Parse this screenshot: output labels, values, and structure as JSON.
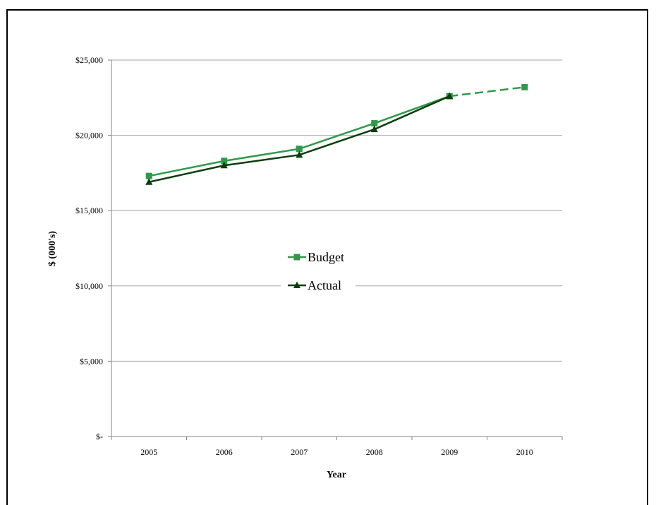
{
  "chart_data": {
    "type": "line",
    "title": "",
    "xlabel": "Year",
    "ylabel": "$ (000's)",
    "categories": [
      "2005",
      "2006",
      "2007",
      "2008",
      "2009",
      "2010"
    ],
    "ylim": [
      0,
      25000
    ],
    "yticks": [
      {
        "value": 0,
        "label": "$-"
      },
      {
        "value": 5000,
        "label": "$5,000"
      },
      {
        "value": 10000,
        "label": "$10,000"
      },
      {
        "value": 15000,
        "label": "$15,000"
      },
      {
        "value": 20000,
        "label": "$20,000"
      },
      {
        "value": 25000,
        "label": "$25,000"
      }
    ],
    "grid": "horizontal",
    "legend_position": "center",
    "series": [
      {
        "name": "Budget",
        "color": "#2e9a4a",
        "marker": "square",
        "values": [
          17300,
          18300,
          19100,
          20800,
          22600,
          23200
        ],
        "dashed_from_index": 4
      },
      {
        "name": "Actual",
        "color": "#0b3d0b",
        "marker": "triangle",
        "values": [
          16900,
          18000,
          18700,
          20400,
          22600,
          null
        ]
      }
    ]
  }
}
